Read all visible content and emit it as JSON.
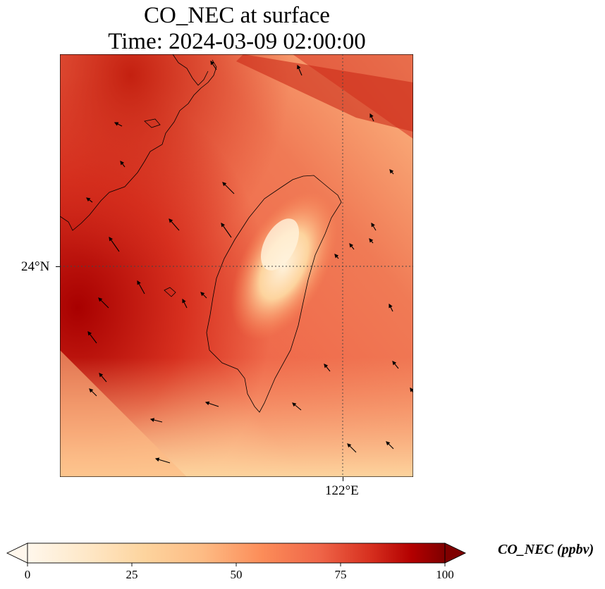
{
  "title": {
    "line1": "CO_NEC at surface",
    "line2": "Time: 2024-03-09 02:00:00"
  },
  "map": {
    "region": "Taiwan Strait",
    "field": "CO_NEC",
    "lat_gridline": "24°N",
    "lon_gridline": "122°E",
    "gridline_style": "dotted",
    "has_wind_vectors": true,
    "colormap": "OrRd"
  },
  "colorbar": {
    "label": "CO_NEC (ppbv)",
    "ticks": [
      "0",
      "25",
      "50",
      "75",
      "100"
    ],
    "extend": "both",
    "colors": [
      "#fff7ec",
      "#fee8c8",
      "#fdd49e",
      "#fdbb84",
      "#fc8d59",
      "#ef6548",
      "#d7301f",
      "#b30000",
      "#7f0000"
    ]
  }
}
